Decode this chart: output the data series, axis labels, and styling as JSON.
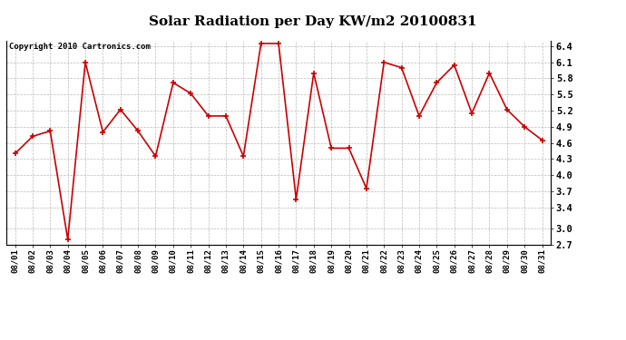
{
  "title": "Solar Radiation per Day KW/m2 20100831",
  "copyright_text": "Copyright 2010 Cartronics.com",
  "dates": [
    "08/01",
    "08/02",
    "08/03",
    "08/04",
    "08/05",
    "08/06",
    "08/07",
    "08/08",
    "08/09",
    "08/10",
    "08/11",
    "08/12",
    "08/13",
    "08/14",
    "08/15",
    "08/16",
    "08/17",
    "08/18",
    "08/19",
    "08/20",
    "08/21",
    "08/22",
    "08/23",
    "08/24",
    "08/25",
    "08/26",
    "08/27",
    "08/28",
    "08/29",
    "08/30",
    "08/31"
  ],
  "values": [
    4.4,
    4.72,
    4.82,
    2.8,
    6.1,
    4.8,
    5.22,
    4.82,
    4.35,
    5.72,
    5.52,
    5.1,
    5.1,
    4.35,
    6.45,
    6.45,
    3.55,
    5.9,
    4.5,
    4.5,
    3.75,
    6.1,
    6.0,
    5.1,
    5.72,
    6.05,
    5.15,
    5.9,
    5.22,
    4.9,
    4.65
  ],
  "line_color": "#cc0000",
  "marker": "+",
  "marker_size": 5,
  "line_width": 1.2,
  "ylim": [
    2.7,
    6.5
  ],
  "yticks": [
    2.7,
    3.0,
    3.4,
    3.7,
    4.0,
    4.3,
    4.6,
    4.9,
    5.2,
    5.5,
    5.8,
    6.1,
    6.4
  ],
  "background_color": "#ffffff",
  "plot_bg_color": "#ffffff",
  "grid_color": "#aaaaaa",
  "title_fontsize": 11,
  "copyright_fontsize": 6.5,
  "tick_fontsize": 6.5,
  "ytick_fontsize": 7.5
}
